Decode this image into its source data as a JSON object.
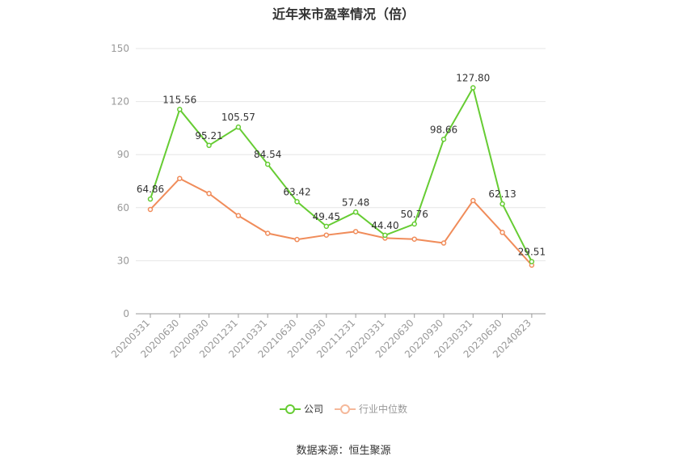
{
  "chart_data": {
    "type": "line",
    "title": "近年来市盈率情况（倍）",
    "categories": [
      "20200331",
      "20200630",
      "20200930",
      "20201231",
      "20210331",
      "20210630",
      "20210930",
      "20211231",
      "20220331",
      "20220630",
      "20220930",
      "20230331",
      "20230630",
      "20240823"
    ],
    "series": [
      {
        "name": "公司",
        "color": "#66cc33",
        "values": [
          64.86,
          115.56,
          95.21,
          105.57,
          84.54,
          63.42,
          49.45,
          57.48,
          44.4,
          50.76,
          98.66,
          127.8,
          62.13,
          29.51
        ],
        "labels": [
          "64.86",
          "115.56",
          "95.21",
          "105.57",
          "84.54",
          "63.42",
          "49.45",
          "57.48",
          "44.40",
          "50.76",
          "98.66",
          "127.80",
          "62.13",
          "29.51"
        ]
      },
      {
        "name": "行业中位数",
        "color": "#f08c5a",
        "values": [
          59,
          76.5,
          68,
          55.5,
          45.5,
          42,
          44.5,
          46.5,
          42.8,
          42.2,
          40,
          64,
          46,
          27.5
        ]
      }
    ],
    "yticks": [
      "0",
      "30",
      "60",
      "90",
      "120",
      "150"
    ],
    "ylim": [
      0,
      150
    ],
    "grid": true,
    "legend_position": "bottom"
  },
  "source": "数据来源：恒生聚源"
}
